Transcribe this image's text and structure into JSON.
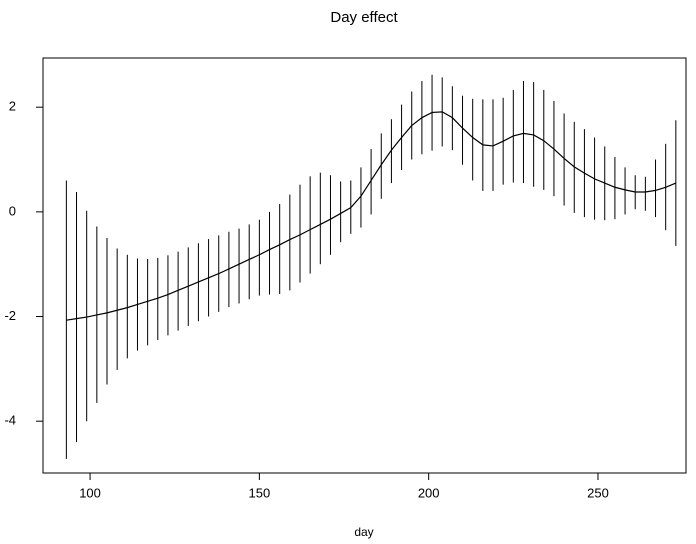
{
  "chart_data": {
    "type": "line",
    "title": "Day effect",
    "xlabel": "day",
    "x": [
      93,
      96,
      99,
      102,
      105,
      108,
      111,
      114,
      117,
      120,
      123,
      126,
      129,
      132,
      135,
      138,
      141,
      144,
      147,
      150,
      153,
      156,
      159,
      162,
      165,
      168,
      171,
      174,
      177,
      180,
      183,
      186,
      189,
      192,
      195,
      198,
      201,
      204,
      207,
      210,
      213,
      216,
      219,
      222,
      225,
      228,
      231,
      234,
      237,
      240,
      243,
      246,
      249,
      252,
      255,
      258,
      261,
      264,
      267,
      270,
      273
    ],
    "values": [
      -2.07,
      -2.04,
      -2.01,
      -1.97,
      -1.93,
      -1.88,
      -1.83,
      -1.77,
      -1.71,
      -1.65,
      -1.58,
      -1.5,
      -1.42,
      -1.34,
      -1.26,
      -1.18,
      -1.09,
      -1.0,
      -0.91,
      -0.82,
      -0.72,
      -0.63,
      -0.53,
      -0.44,
      -0.34,
      -0.24,
      -0.14,
      -0.03,
      0.08,
      0.3,
      0.6,
      0.9,
      1.18,
      1.42,
      1.65,
      1.8,
      1.9,
      1.91,
      1.8,
      1.6,
      1.42,
      1.28,
      1.26,
      1.35,
      1.45,
      1.5,
      1.47,
      1.36,
      1.2,
      1.02,
      0.86,
      0.74,
      0.63,
      0.55,
      0.47,
      0.42,
      0.38,
      0.38,
      0.41,
      0.47,
      0.55
    ],
    "lower": [
      -4.72,
      -4.4,
      -4.0,
      -3.65,
      -3.3,
      -3.02,
      -2.8,
      -2.65,
      -2.55,
      -2.45,
      -2.36,
      -2.27,
      -2.18,
      -2.09,
      -2.0,
      -1.91,
      -1.82,
      -1.75,
      -1.67,
      -1.6,
      -1.58,
      -1.57,
      -1.5,
      -1.35,
      -1.18,
      -1.0,
      -0.82,
      -0.58,
      -0.42,
      -0.3,
      -0.05,
      0.25,
      0.55,
      0.8,
      1.0,
      1.1,
      1.17,
      1.25,
      1.18,
      0.9,
      0.6,
      0.4,
      0.4,
      0.52,
      0.56,
      0.55,
      0.48,
      0.42,
      0.3,
      0.12,
      -0.02,
      -0.1,
      -0.15,
      -0.16,
      -0.14,
      -0.05,
      0.05,
      0.02,
      -0.1,
      -0.35,
      -0.65
    ],
    "upper": [
      0.6,
      0.38,
      0.02,
      -0.28,
      -0.5,
      -0.7,
      -0.82,
      -0.89,
      -0.9,
      -0.88,
      -0.83,
      -0.76,
      -0.68,
      -0.6,
      -0.52,
      -0.45,
      -0.38,
      -0.32,
      -0.24,
      -0.15,
      0.0,
      0.15,
      0.33,
      0.52,
      0.68,
      0.75,
      0.7,
      0.58,
      0.6,
      0.85,
      1.2,
      1.5,
      1.77,
      2.05,
      2.3,
      2.5,
      2.62,
      2.57,
      2.4,
      2.22,
      2.16,
      2.15,
      2.15,
      2.18,
      2.33,
      2.5,
      2.48,
      2.33,
      2.12,
      1.88,
      1.72,
      1.58,
      1.42,
      1.25,
      1.05,
      0.85,
      0.7,
      0.67,
      1.0,
      1.3,
      1.75
    ],
    "color": "#000000",
    "xlim": [
      86.1,
      276.0
    ],
    "ylim": [
      -4.99,
      2.94
    ],
    "xticks": [
      100,
      150,
      200,
      250
    ],
    "yticks": [
      -4,
      -2,
      0,
      2
    ]
  }
}
